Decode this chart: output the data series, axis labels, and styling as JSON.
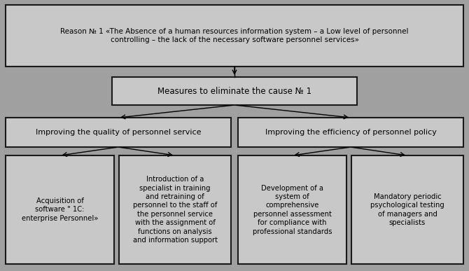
{
  "bg_color": "#a0a0a0",
  "box_color": "#c8c8c8",
  "box_edge_color": "#1a1a1a",
  "text_color": "#000000",
  "fig_width": 6.7,
  "fig_height": 3.87,
  "dpi": 100,
  "root_text": "Reason № 1 «The Absence of a human resources information system – a Low level of personnel\ncontrolling – the lack of the necessary software personnel services»",
  "level2_text": "Measures to eliminate the cause № 1",
  "level3_left_text": "Improving the quality of personnel service",
  "level3_right_text": "Improving the efficiency of personnel policy",
  "leaf1_text": "Acquisition of\nsoftware \" 1C:\nenterprise Personnel»",
  "leaf2_text": "Introduction of a\nspecialist in training\nand retraining of\npersonnel to the staff of\nthe personnel service\nwith the assignment of\nfunctions on analysis\nand information support",
  "leaf3_text": "Development of a\nsystem of\ncomprehensive\npersonnel assessment\nfor compliance with\nprofessional standards",
  "leaf4_text": "Mandatory periodic\npsychological testing\nof managers and\nspecialists",
  "font_size_root": 7.5,
  "font_size_level2": 8.5,
  "font_size_level3": 8.0,
  "font_size_leaf": 7.2
}
